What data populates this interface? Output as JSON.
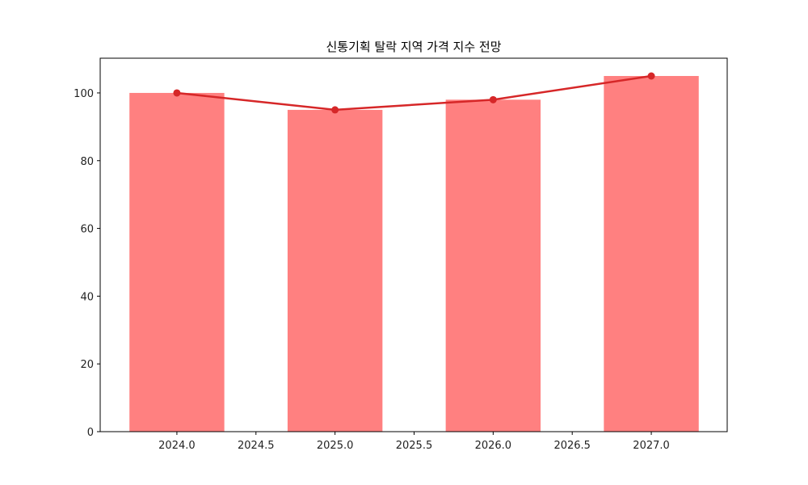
{
  "chart_data": {
    "type": "bar",
    "title": "신통기획 탈락 지역 가격 지수 전망",
    "xlabel": "",
    "ylabel": "",
    "categories": [
      2024,
      2025,
      2026,
      2027
    ],
    "series": [
      {
        "name": "bar",
        "type": "bar",
        "color": "#ff8080",
        "values": [
          100,
          95,
          98,
          105
        ]
      },
      {
        "name": "line",
        "type": "line",
        "color": "#d62728",
        "marker": "o",
        "values": [
          100,
          95,
          98,
          105
        ]
      }
    ],
    "xlim": [
      2023.515,
      2027.48
    ],
    "ylim": [
      0,
      110.25
    ],
    "xticks": [
      "2024.0",
      "2024.5",
      "2025.0",
      "2025.5",
      "2026.0",
      "2026.5",
      "2027.0"
    ],
    "xtick_values": [
      2024.0,
      2024.5,
      2025.0,
      2025.5,
      2026.0,
      2026.5,
      2027.0
    ],
    "yticks": [
      "0",
      "20",
      "40",
      "60",
      "80",
      "100"
    ],
    "ytick_values": [
      0,
      20,
      40,
      60,
      80,
      100
    ],
    "bar_width": 0.6,
    "grid": false,
    "legend": null
  }
}
